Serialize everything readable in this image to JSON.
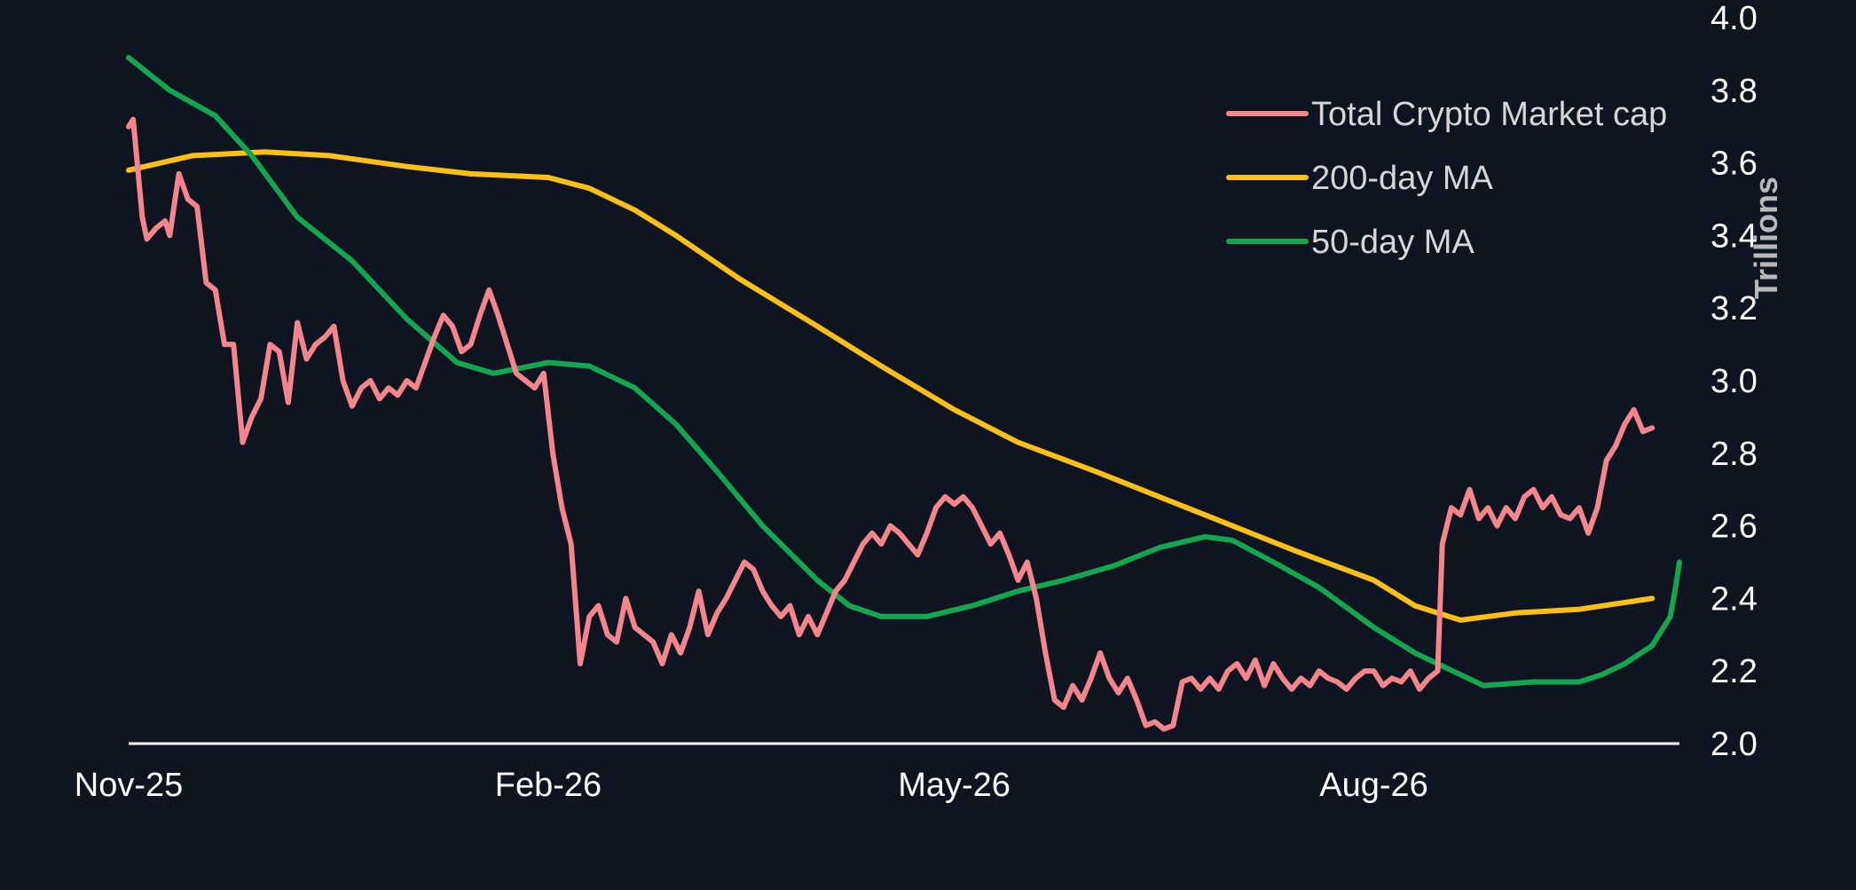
{
  "chart_data": {
    "type": "line",
    "title": "",
    "xlabel": "",
    "ylabel": "Trillions",
    "ylim": [
      2.0,
      4.0
    ],
    "y_ticks": [
      "2.0",
      "2.2",
      "2.4",
      "2.6",
      "2.8",
      "3.0",
      "3.2",
      "3.4",
      "3.6",
      "3.8",
      "4.0"
    ],
    "x_ticks": [
      {
        "label": "Nov-25",
        "date": "2025-11-01"
      },
      {
        "label": "Feb-26",
        "date": "2026-02-01"
      },
      {
        "label": "May-26",
        "date": "2026-05-01"
      },
      {
        "label": "Aug-26",
        "date": "2026-08-01"
      }
    ],
    "xlim": [
      "2025-11-01",
      "2026-10-07"
    ],
    "y_axis_position": "right",
    "grid": false,
    "legend_position": "top-right",
    "colors": {
      "background": "#0e1420",
      "axis": "#ffffff"
    },
    "series": [
      {
        "name": "Total Crypto Market cap",
        "color": "#f4858c",
        "points": [
          [
            "2025-11-01",
            3.7
          ],
          [
            "2025-11-02",
            3.72
          ],
          [
            "2025-11-04",
            3.45
          ],
          [
            "2025-11-05",
            3.39
          ],
          [
            "2025-11-07",
            3.42
          ],
          [
            "2025-11-09",
            3.44
          ],
          [
            "2025-11-10",
            3.4
          ],
          [
            "2025-11-12",
            3.57
          ],
          [
            "2025-11-14",
            3.5
          ],
          [
            "2025-11-16",
            3.48
          ],
          [
            "2025-11-18",
            3.27
          ],
          [
            "2025-11-20",
            3.25
          ],
          [
            "2025-11-22",
            3.1
          ],
          [
            "2025-11-24",
            3.1
          ],
          [
            "2025-11-26",
            2.83
          ],
          [
            "2025-11-28",
            2.9
          ],
          [
            "2025-11-30",
            2.95
          ],
          [
            "2025-12-02",
            3.1
          ],
          [
            "2025-12-04",
            3.08
          ],
          [
            "2025-12-06",
            2.94
          ],
          [
            "2025-12-08",
            3.16
          ],
          [
            "2025-12-10",
            3.06
          ],
          [
            "2025-12-12",
            3.1
          ],
          [
            "2025-12-14",
            3.12
          ],
          [
            "2025-12-16",
            3.15
          ],
          [
            "2025-12-18",
            3.0
          ],
          [
            "2025-12-20",
            2.93
          ],
          [
            "2025-12-22",
            2.98
          ],
          [
            "2025-12-24",
            3.0
          ],
          [
            "2025-12-26",
            2.95
          ],
          [
            "2025-12-28",
            2.98
          ],
          [
            "2025-12-30",
            2.96
          ],
          [
            "2026-01-01",
            3.0
          ],
          [
            "2026-01-03",
            2.98
          ],
          [
            "2026-01-05",
            3.05
          ],
          [
            "2026-01-07",
            3.12
          ],
          [
            "2026-01-09",
            3.18
          ],
          [
            "2026-01-11",
            3.15
          ],
          [
            "2026-01-13",
            3.08
          ],
          [
            "2026-01-15",
            3.1
          ],
          [
            "2026-01-17",
            3.18
          ],
          [
            "2026-01-19",
            3.25
          ],
          [
            "2026-01-21",
            3.18
          ],
          [
            "2026-01-23",
            3.1
          ],
          [
            "2026-01-25",
            3.02
          ],
          [
            "2026-01-27",
            3.0
          ],
          [
            "2026-01-29",
            2.98
          ],
          [
            "2026-01-31",
            3.02
          ],
          [
            "2026-02-02",
            2.8
          ],
          [
            "2026-02-04",
            2.65
          ],
          [
            "2026-02-06",
            2.55
          ],
          [
            "2026-02-08",
            2.22
          ],
          [
            "2026-02-10",
            2.35
          ],
          [
            "2026-02-12",
            2.38
          ],
          [
            "2026-02-14",
            2.3
          ],
          [
            "2026-02-16",
            2.28
          ],
          [
            "2026-02-18",
            2.4
          ],
          [
            "2026-02-20",
            2.32
          ],
          [
            "2026-02-22",
            2.3
          ],
          [
            "2026-02-24",
            2.28
          ],
          [
            "2026-02-26",
            2.22
          ],
          [
            "2026-02-28",
            2.3
          ],
          [
            "2026-03-02",
            2.25
          ],
          [
            "2026-03-04",
            2.32
          ],
          [
            "2026-03-06",
            2.42
          ],
          [
            "2026-03-08",
            2.3
          ],
          [
            "2026-03-10",
            2.36
          ],
          [
            "2026-03-12",
            2.4
          ],
          [
            "2026-03-14",
            2.45
          ],
          [
            "2026-03-16",
            2.5
          ],
          [
            "2026-03-18",
            2.48
          ],
          [
            "2026-03-20",
            2.42
          ],
          [
            "2026-03-22",
            2.38
          ],
          [
            "2026-03-24",
            2.35
          ],
          [
            "2026-03-26",
            2.38
          ],
          [
            "2026-03-28",
            2.3
          ],
          [
            "2026-03-30",
            2.35
          ],
          [
            "2026-04-01",
            2.3
          ],
          [
            "2026-04-03",
            2.36
          ],
          [
            "2026-04-05",
            2.42
          ],
          [
            "2026-04-07",
            2.45
          ],
          [
            "2026-04-09",
            2.5
          ],
          [
            "2026-04-11",
            2.55
          ],
          [
            "2026-04-13",
            2.58
          ],
          [
            "2026-04-15",
            2.55
          ],
          [
            "2026-04-17",
            2.6
          ],
          [
            "2026-04-19",
            2.58
          ],
          [
            "2026-04-21",
            2.55
          ],
          [
            "2026-04-23",
            2.52
          ],
          [
            "2026-04-25",
            2.58
          ],
          [
            "2026-04-27",
            2.65
          ],
          [
            "2026-04-29",
            2.68
          ],
          [
            "2026-05-01",
            2.66
          ],
          [
            "2026-05-03",
            2.68
          ],
          [
            "2026-05-05",
            2.65
          ],
          [
            "2026-05-07",
            2.6
          ],
          [
            "2026-05-09",
            2.55
          ],
          [
            "2026-05-11",
            2.58
          ],
          [
            "2026-05-13",
            2.52
          ],
          [
            "2026-05-15",
            2.45
          ],
          [
            "2026-05-17",
            2.5
          ],
          [
            "2026-05-19",
            2.4
          ],
          [
            "2026-05-21",
            2.25
          ],
          [
            "2026-05-23",
            2.12
          ],
          [
            "2026-05-25",
            2.1
          ],
          [
            "2026-05-27",
            2.16
          ],
          [
            "2026-05-29",
            2.12
          ],
          [
            "2026-05-31",
            2.18
          ],
          [
            "2026-06-02",
            2.25
          ],
          [
            "2026-06-04",
            2.18
          ],
          [
            "2026-06-06",
            2.14
          ],
          [
            "2026-06-08",
            2.18
          ],
          [
            "2026-06-10",
            2.12
          ],
          [
            "2026-06-12",
            2.05
          ],
          [
            "2026-06-14",
            2.06
          ],
          [
            "2026-06-16",
            2.04
          ],
          [
            "2026-06-18",
            2.05
          ],
          [
            "2026-06-20",
            2.17
          ],
          [
            "2026-06-22",
            2.18
          ],
          [
            "2026-06-24",
            2.15
          ],
          [
            "2026-06-26",
            2.18
          ],
          [
            "2026-06-28",
            2.15
          ],
          [
            "2026-06-30",
            2.2
          ],
          [
            "2026-07-02",
            2.22
          ],
          [
            "2026-07-04",
            2.18
          ],
          [
            "2026-07-06",
            2.23
          ],
          [
            "2026-07-08",
            2.16
          ],
          [
            "2026-07-10",
            2.22
          ],
          [
            "2026-07-12",
            2.18
          ],
          [
            "2026-07-14",
            2.15
          ],
          [
            "2026-07-16",
            2.18
          ],
          [
            "2026-07-18",
            2.16
          ],
          [
            "2026-07-20",
            2.2
          ],
          [
            "2026-07-22",
            2.18
          ],
          [
            "2026-07-24",
            2.17
          ],
          [
            "2026-07-26",
            2.15
          ],
          [
            "2026-07-28",
            2.18
          ],
          [
            "2026-07-30",
            2.2
          ],
          [
            "2026-08-01",
            2.2
          ],
          [
            "2026-08-03",
            2.16
          ],
          [
            "2026-08-05",
            2.18
          ],
          [
            "2026-08-07",
            2.17
          ],
          [
            "2026-08-09",
            2.2
          ],
          [
            "2026-08-11",
            2.15
          ],
          [
            "2026-08-13",
            2.18
          ],
          [
            "2026-08-15",
            2.2
          ],
          [
            "2026-08-16",
            2.55
          ],
          [
            "2026-08-18",
            2.65
          ],
          [
            "2026-08-20",
            2.63
          ],
          [
            "2026-08-22",
            2.7
          ],
          [
            "2026-08-24",
            2.62
          ],
          [
            "2026-08-26",
            2.65
          ],
          [
            "2026-08-28",
            2.6
          ],
          [
            "2026-08-30",
            2.65
          ],
          [
            "2026-09-01",
            2.62
          ],
          [
            "2026-09-03",
            2.68
          ],
          [
            "2026-09-05",
            2.7
          ],
          [
            "2026-09-07",
            2.65
          ],
          [
            "2026-09-09",
            2.68
          ],
          [
            "2026-09-11",
            2.63
          ],
          [
            "2026-09-13",
            2.62
          ],
          [
            "2026-09-15",
            2.65
          ],
          [
            "2026-09-17",
            2.58
          ],
          [
            "2026-09-19",
            2.65
          ],
          [
            "2026-09-21",
            2.78
          ],
          [
            "2026-09-23",
            2.82
          ],
          [
            "2026-09-25",
            2.88
          ],
          [
            "2026-09-27",
            2.92
          ],
          [
            "2026-09-29",
            2.86
          ],
          [
            "2026-10-01",
            2.87
          ]
        ]
      },
      {
        "name": "200-day MA",
        "color": "#fbbf16",
        "points": [
          [
            "2025-11-01",
            3.58
          ],
          [
            "2025-11-15",
            3.62
          ],
          [
            "2025-12-01",
            3.63
          ],
          [
            "2025-12-15",
            3.62
          ],
          [
            "2026-01-01",
            3.59
          ],
          [
            "2026-01-15",
            3.57
          ],
          [
            "2026-02-01",
            3.56
          ],
          [
            "2026-02-10",
            3.53
          ],
          [
            "2026-02-20",
            3.47
          ],
          [
            "2026-03-01",
            3.4
          ],
          [
            "2026-03-15",
            3.28
          ],
          [
            "2026-04-01",
            3.15
          ],
          [
            "2026-04-15",
            3.04
          ],
          [
            "2026-05-01",
            2.92
          ],
          [
            "2026-05-15",
            2.83
          ],
          [
            "2026-06-01",
            2.75
          ],
          [
            "2026-06-15",
            2.68
          ],
          [
            "2026-07-01",
            2.6
          ],
          [
            "2026-07-15",
            2.53
          ],
          [
            "2026-08-01",
            2.45
          ],
          [
            "2026-08-10",
            2.38
          ],
          [
            "2026-08-20",
            2.34
          ],
          [
            "2026-09-01",
            2.36
          ],
          [
            "2026-09-15",
            2.37
          ],
          [
            "2026-10-01",
            2.4
          ]
        ]
      },
      {
        "name": "50-day MA",
        "color": "#12a650",
        "points": [
          [
            "2025-11-01",
            3.89
          ],
          [
            "2025-11-10",
            3.8
          ],
          [
            "2025-11-20",
            3.73
          ],
          [
            "2025-11-28",
            3.62
          ],
          [
            "2025-12-08",
            3.45
          ],
          [
            "2025-12-20",
            3.33
          ],
          [
            "2026-01-01",
            3.17
          ],
          [
            "2026-01-12",
            3.05
          ],
          [
            "2026-01-20",
            3.02
          ],
          [
            "2026-02-01",
            3.05
          ],
          [
            "2026-02-10",
            3.04
          ],
          [
            "2026-02-20",
            2.98
          ],
          [
            "2026-03-01",
            2.88
          ],
          [
            "2026-03-10",
            2.75
          ],
          [
            "2026-03-20",
            2.6
          ],
          [
            "2026-04-01",
            2.45
          ],
          [
            "2026-04-08",
            2.38
          ],
          [
            "2026-04-15",
            2.35
          ],
          [
            "2026-04-25",
            2.35
          ],
          [
            "2026-05-05",
            2.38
          ],
          [
            "2026-05-15",
            2.42
          ],
          [
            "2026-05-25",
            2.45
          ],
          [
            "2026-06-05",
            2.49
          ],
          [
            "2026-06-15",
            2.54
          ],
          [
            "2026-06-25",
            2.57
          ],
          [
            "2026-07-01",
            2.56
          ],
          [
            "2026-07-10",
            2.5
          ],
          [
            "2026-07-20",
            2.43
          ],
          [
            "2026-08-01",
            2.32
          ],
          [
            "2026-08-10",
            2.25
          ],
          [
            "2026-08-20",
            2.19
          ],
          [
            "2026-08-25",
            2.16
          ],
          [
            "2026-09-05",
            2.17
          ],
          [
            "2026-09-15",
            2.17
          ],
          [
            "2026-09-20",
            2.19
          ],
          [
            "2026-09-25",
            2.22
          ],
          [
            "2026-10-01",
            2.27
          ],
          [
            "2026-10-05",
            2.35
          ],
          [
            "2026-10-06",
            2.42
          ],
          [
            "2026-10-07",
            2.5
          ]
        ]
      }
    ]
  }
}
